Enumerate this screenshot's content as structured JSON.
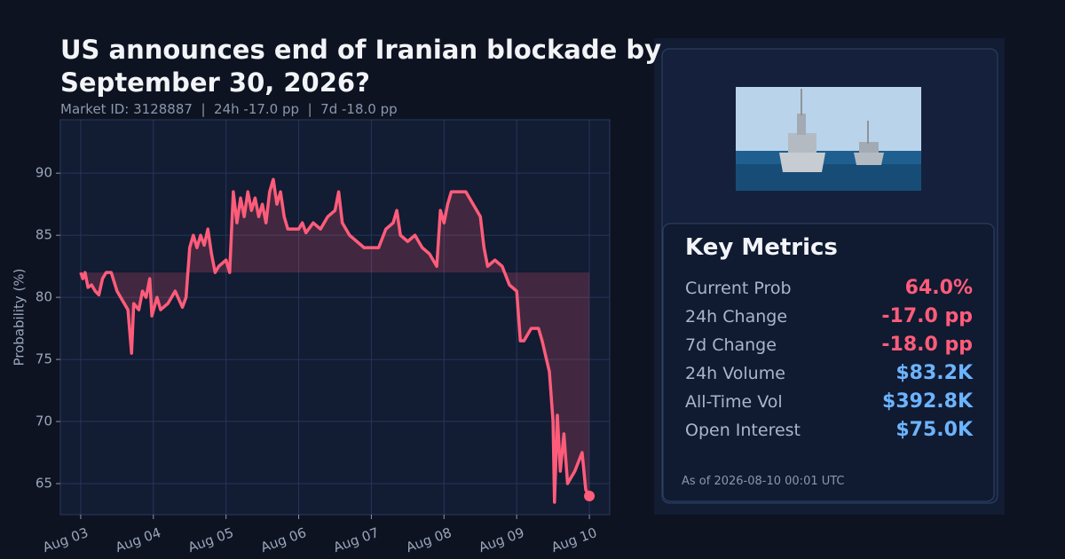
{
  "chart_data": {
    "type": "line",
    "title": "US announces end of Iranian blockade by September 30, 2026?",
    "subtitle": "Market ID: 3128887  |  24h -17.0 pp  |  7d -18.0 pp",
    "ylabel": "Probability (%)",
    "xlim": [
      -0.28,
      7.28
    ],
    "xticks": [
      {
        "value": 0,
        "label": "Aug 03"
      },
      {
        "value": 1,
        "label": "Aug 04"
      },
      {
        "value": 2,
        "label": "Aug 05"
      },
      {
        "value": 3,
        "label": "Aug 06"
      },
      {
        "value": 4,
        "label": "Aug 07"
      },
      {
        "value": 5,
        "label": "Aug 08"
      },
      {
        "value": 6,
        "label": "Aug 09"
      },
      {
        "value": 7,
        "label": "Aug 10"
      }
    ],
    "ylim": [
      62.5,
      94.3
    ],
    "yticks": [
      65,
      70,
      75,
      80,
      85,
      90
    ],
    "grid": true,
    "color": "#ff5c7a",
    "x": [
      0,
      0.03,
      0.06,
      0.1,
      0.15,
      0.2,
      0.25,
      0.3,
      0.35,
      0.42,
      0.5,
      0.6,
      0.65,
      0.7,
      0.73,
      0.8,
      0.85,
      0.9,
      0.95,
      0.98,
      1.05,
      1.1,
      1.2,
      1.3,
      1.4,
      1.45,
      1.5,
      1.55,
      1.6,
      1.65,
      1.7,
      1.75,
      1.8,
      1.85,
      1.9,
      2.0,
      2.05,
      2.1,
      2.15,
      2.2,
      2.25,
      2.3,
      2.35,
      2.4,
      2.45,
      2.5,
      2.55,
      2.6,
      2.65,
      2.7,
      2.75,
      2.8,
      2.85,
      2.9,
      3.0,
      3.05,
      3.1,
      3.2,
      3.3,
      3.4,
      3.5,
      3.55,
      3.6,
      3.7,
      3.8,
      3.9,
      4.0,
      4.1,
      4.2,
      4.3,
      4.35,
      4.4,
      4.5,
      4.6,
      4.7,
      4.8,
      4.9,
      4.95,
      5.0,
      5.05,
      5.1,
      5.2,
      5.3,
      5.4,
      5.5,
      5.55,
      5.6,
      5.7,
      5.8,
      5.9,
      6.0,
      6.05,
      6.1,
      6.2,
      6.3,
      6.35,
      6.45,
      6.5,
      6.52,
      6.56,
      6.6,
      6.65,
      6.7,
      6.8,
      6.9,
      6.95,
      7.0
    ],
    "values": [
      82,
      81.5,
      82,
      80.8,
      81,
      80.5,
      80.2,
      81.5,
      82,
      82,
      80.5,
      79.5,
      79,
      75.5,
      79.5,
      79,
      80.5,
      80,
      81.5,
      78.5,
      80,
      79,
      79.5,
      80.5,
      79.2,
      80,
      84,
      85,
      84,
      85,
      84.2,
      85.5,
      83.5,
      82,
      82.5,
      83,
      82,
      88.5,
      86,
      88,
      86.5,
      88.5,
      87,
      88,
      86.5,
      87.5,
      86,
      88.5,
      89.5,
      87.5,
      88.5,
      86.5,
      85.5,
      85.5,
      85.5,
      86,
      85.2,
      86,
      85.5,
      86.5,
      87,
      88.5,
      86,
      85,
      84.5,
      84,
      84,
      84,
      85.5,
      86,
      87,
      85,
      84.5,
      85,
      84,
      83.5,
      82.5,
      87,
      86,
      87.5,
      88.5,
      88.5,
      88.5,
      87.5,
      86.5,
      84,
      82.5,
      83,
      82.5,
      81,
      80.5,
      76.5,
      76.5,
      77.5,
      77.5,
      76.5,
      74,
      70,
      63.5,
      70.5,
      66,
      69,
      65,
      66,
      67.5,
      64.5,
      64
    ]
  },
  "panel": {
    "heading": "Key Metrics",
    "rows": [
      {
        "label": "Current Prob",
        "value": "64.0%",
        "color": "#ff5c7a"
      },
      {
        "label": "24h Change",
        "value": "-17.0 pp",
        "color": "#ff5c7a"
      },
      {
        "label": "7d Change",
        "value": "-18.0 pp",
        "color": "#ff5c7a"
      },
      {
        "label": "24h Volume",
        "value": "$83.2K",
        "color": "#6cb4ff"
      },
      {
        "label": "All-Time Vol",
        "value": "$392.8K",
        "color": "#6cb4ff"
      },
      {
        "label": "Open Interest",
        "value": "$75.0K",
        "color": "#6cb4ff"
      }
    ],
    "footnote": "As of 2026-08-10 00:01 UTC"
  }
}
